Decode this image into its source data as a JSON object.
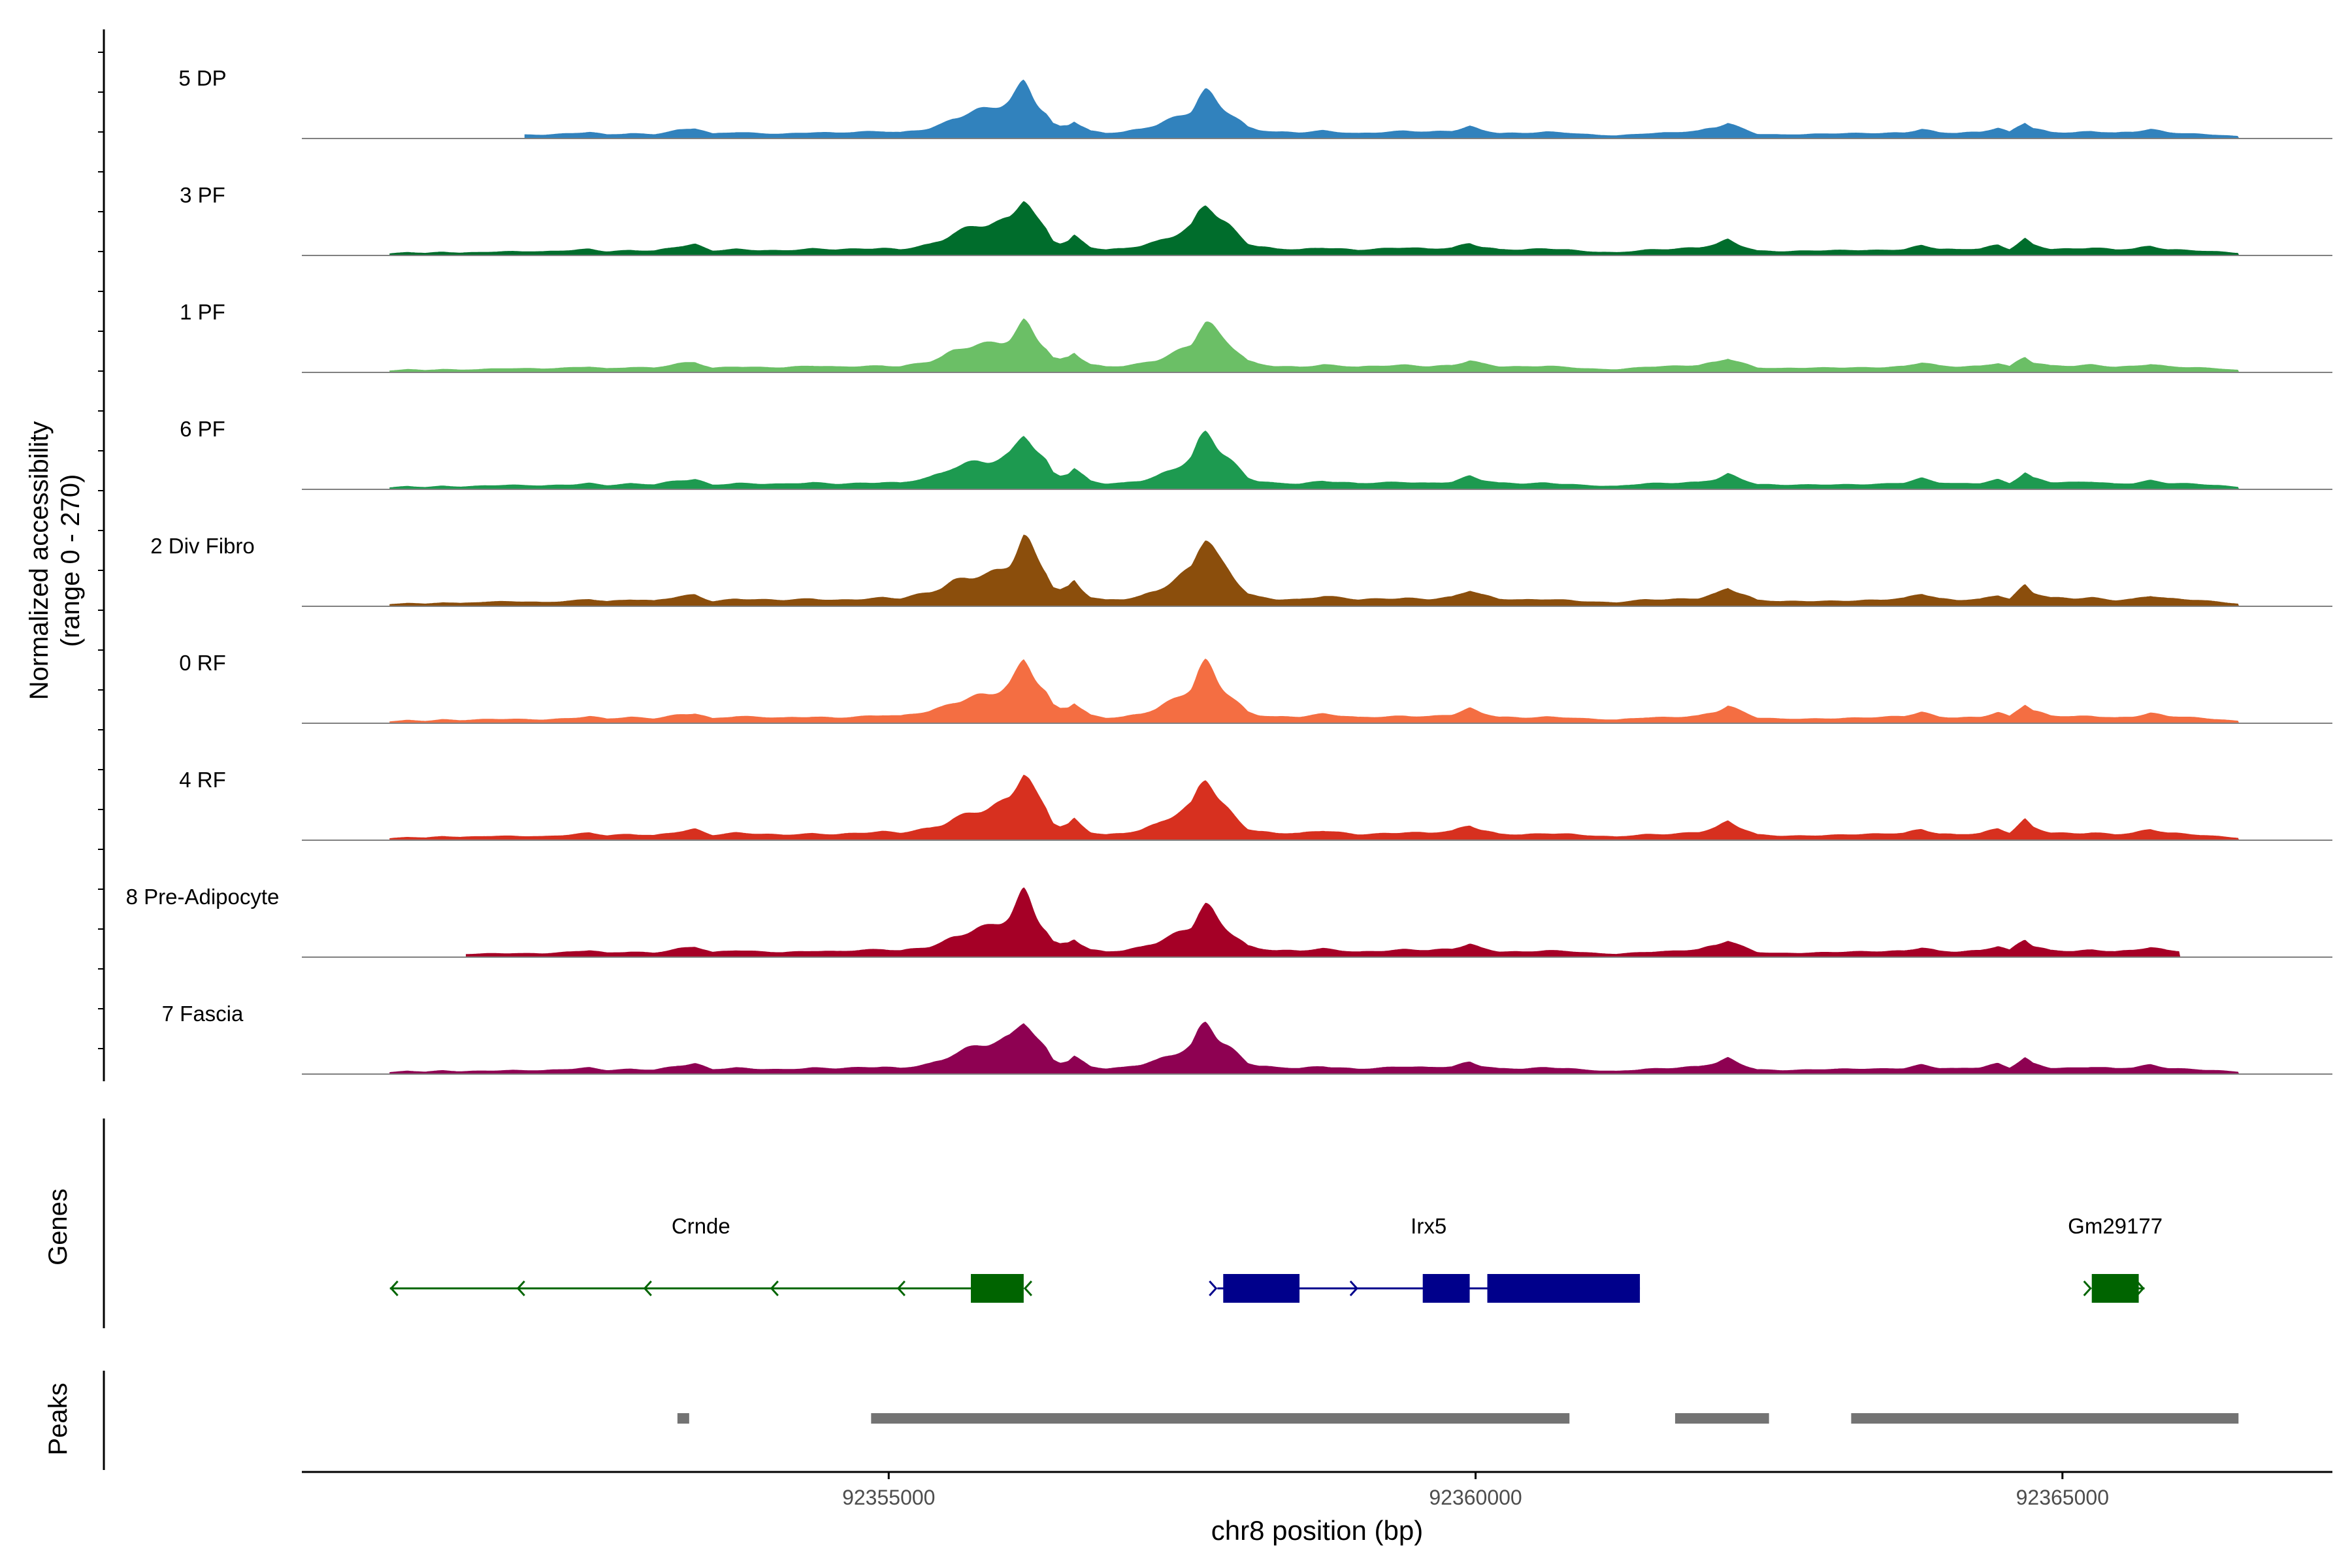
{
  "chart_data": {
    "type": "area",
    "title": "",
    "ylabel_line1": "Normalized accessibility",
    "ylabel_line2": "(range 0 - 270)",
    "xlabel": "chr8 position (bp)",
    "xlim": [
      92350000,
      92367300
    ],
    "ylim": [
      0,
      270
    ],
    "x_ticks": [
      92355000,
      92360000,
      92365000
    ],
    "x_tick_labels": [
      "92355000",
      "92360000",
      "92365000"
    ],
    "genes_label": "Genes",
    "peaks_label": "Peaks",
    "peak_template": [
      [
        92350750,
        0.02
      ],
      [
        92350900,
        0.05
      ],
      [
        92351050,
        0.03
      ],
      [
        92351200,
        0.06
      ],
      [
        92351350,
        0.04
      ],
      [
        92351550,
        0.06
      ],
      [
        92351800,
        0.07
      ],
      [
        92352050,
        0.06
      ],
      [
        92352300,
        0.09
      ],
      [
        92352450,
        0.12
      ],
      [
        92352600,
        0.07
      ],
      [
        92352800,
        0.1
      ],
      [
        92353000,
        0.08
      ],
      [
        92353200,
        0.16
      ],
      [
        92353350,
        0.2
      ],
      [
        92353500,
        0.08
      ],
      [
        92353700,
        0.12
      ],
      [
        92353900,
        0.1
      ],
      [
        92354100,
        0.09
      ],
      [
        92354350,
        0.12
      ],
      [
        92354550,
        0.1
      ],
      [
        92354750,
        0.12
      ],
      [
        92354950,
        0.14
      ],
      [
        92355100,
        0.12
      ],
      [
        92355250,
        0.18
      ],
      [
        92355350,
        0.22
      ],
      [
        92355450,
        0.3
      ],
      [
        92355550,
        0.42
      ],
      [
        92355650,
        0.5
      ],
      [
        92355750,
        0.56
      ],
      [
        92355850,
        0.6
      ],
      [
        92355950,
        0.66
      ],
      [
        92356030,
        0.74
      ],
      [
        92356100,
        0.88
      ],
      [
        92356150,
        1.0
      ],
      [
        92356200,
        0.92
      ],
      [
        92356270,
        0.74
      ],
      [
        92356340,
        0.56
      ],
      [
        92356400,
        0.32
      ],
      [
        92356460,
        0.26
      ],
      [
        92356530,
        0.3
      ],
      [
        92356580,
        0.4
      ],
      [
        92356640,
        0.28
      ],
      [
        92356720,
        0.15
      ],
      [
        92356850,
        0.1
      ],
      [
        92357000,
        0.12
      ],
      [
        92357150,
        0.18
      ],
      [
        92357280,
        0.27
      ],
      [
        92357400,
        0.4
      ],
      [
        92357500,
        0.52
      ],
      [
        92357580,
        0.62
      ],
      [
        92357640,
        0.82
      ],
      [
        92357700,
        0.93
      ],
      [
        92357760,
        0.86
      ],
      [
        92357830,
        0.72
      ],
      [
        92357900,
        0.58
      ],
      [
        92357980,
        0.4
      ],
      [
        92358060,
        0.22
      ],
      [
        92358150,
        0.16
      ],
      [
        92358300,
        0.12
      ],
      [
        92358500,
        0.11
      ],
      [
        92358700,
        0.16
      ],
      [
        92358850,
        0.13
      ],
      [
        92359000,
        0.1
      ],
      [
        92359200,
        0.12
      ],
      [
        92359400,
        0.14
      ],
      [
        92359600,
        0.12
      ],
      [
        92359800,
        0.15
      ],
      [
        92359950,
        0.26
      ],
      [
        92360050,
        0.18
      ],
      [
        92360200,
        0.11
      ],
      [
        92360400,
        0.1
      ],
      [
        92360600,
        0.12
      ],
      [
        92360800,
        0.1
      ],
      [
        92360900,
        0.08
      ],
      [
        92361050,
        0.06
      ],
      [
        92361200,
        0.05
      ],
      [
        92361450,
        0.1
      ],
      [
        92361650,
        0.11
      ],
      [
        92361900,
        0.14
      ],
      [
        92362050,
        0.22
      ],
      [
        92362150,
        0.32
      ],
      [
        92362250,
        0.22
      ],
      [
        92362400,
        0.09
      ],
      [
        92362600,
        0.07
      ],
      [
        92362900,
        0.08
      ],
      [
        92363150,
        0.09
      ],
      [
        92363450,
        0.1
      ],
      [
        92363650,
        0.12
      ],
      [
        92363800,
        0.2
      ],
      [
        92363950,
        0.12
      ],
      [
        92364100,
        0.1
      ],
      [
        92364300,
        0.12
      ],
      [
        92364450,
        0.2
      ],
      [
        92364550,
        0.12
      ],
      [
        92364680,
        0.35
      ],
      [
        92364750,
        0.22
      ],
      [
        92364900,
        0.13
      ],
      [
        92365100,
        0.12
      ],
      [
        92365250,
        0.14
      ],
      [
        92365450,
        0.1
      ],
      [
        92365600,
        0.12
      ],
      [
        92365750,
        0.18
      ],
      [
        92365900,
        0.12
      ],
      [
        92366150,
        0.09
      ],
      [
        92366350,
        0.06
      ],
      [
        92366500,
        0.03
      ]
    ],
    "series": [
      {
        "name": "5 DP",
        "color": "#3182BD",
        "x_start": 92351900,
        "x_end": 92366500,
        "scale": 0.42,
        "spikes": [
          [
            92356150,
            0.2
          ],
          [
            92357700,
            0.15
          ]
        ]
      },
      {
        "name": "3 PF",
        "color": "#006D2C",
        "x_start": 92350750,
        "x_end": 92366500,
        "scale": 0.44,
        "spikes": [
          [
            92356150,
            0.22
          ],
          [
            92357700,
            0.17
          ]
        ]
      },
      {
        "name": "1 PF",
        "color": "#6BBF66",
        "x_start": 92350750,
        "x_end": 92366500,
        "scale": 0.42,
        "spikes": [
          [
            92356150,
            0.15
          ],
          [
            92357700,
            0.14
          ]
        ]
      },
      {
        "name": "6 PF",
        "color": "#1D9A50",
        "x_start": 92350750,
        "x_end": 92366500,
        "scale": 0.44,
        "spikes": [
          [
            92356150,
            0.2
          ],
          [
            92357700,
            0.18
          ]
        ]
      },
      {
        "name": "2 Div Fibro",
        "color": "#8B4E0C",
        "x_start": 92350750,
        "x_end": 92366500,
        "scale": 0.52,
        "spikes": [
          [
            92356150,
            0.22
          ],
          [
            92357700,
            0.2
          ]
        ]
      },
      {
        "name": "0 RF",
        "color": "#F46E42",
        "x_start": 92350750,
        "x_end": 92366500,
        "scale": 0.46,
        "spikes": [
          [
            92356150,
            0.18
          ],
          [
            92357700,
            0.22
          ]
        ]
      },
      {
        "name": "4 RF",
        "color": "#D7301F",
        "x_start": 92350750,
        "x_end": 92366500,
        "scale": 0.48,
        "spikes": [
          [
            92356150,
            0.2
          ],
          [
            92357700,
            0.26
          ]
        ]
      },
      {
        "name": "8 Pre-Adipocyte",
        "color": "#A50026",
        "x_start": 92351400,
        "x_end": 92366000,
        "scale": 0.44,
        "spikes": [
          [
            92356150,
            0.3
          ],
          [
            92357700,
            0.2
          ]
        ]
      },
      {
        "name": "7 Fascia",
        "color": "#8E0152",
        "x_start": 92350750,
        "x_end": 92366500,
        "scale": 0.42,
        "spikes": [
          [
            92356150,
            0.15
          ],
          [
            92357700,
            0.25
          ]
        ]
      }
    ],
    "genes": [
      {
        "name": "Crnde",
        "strand": "-",
        "color": "#006400",
        "start": 92350750,
        "end": 92356150,
        "exons": [
          [
            92355700,
            92356150
          ]
        ],
        "label_x": 92353400
      },
      {
        "name": "Irx5",
        "strand": "+",
        "color": "#00008B",
        "start": 92357800,
        "end": 92361400,
        "exons": [
          [
            92357850,
            92358500
          ],
          [
            92359550,
            92359950
          ],
          [
            92360100,
            92361400
          ]
        ],
        "label_x": 92359600
      },
      {
        "name": "Gm29177",
        "strand": "+",
        "color": "#006400",
        "start": 92365250,
        "end": 92365700,
        "exons": [
          [
            92365250,
            92365650
          ]
        ],
        "label_x": 92365450
      }
    ],
    "peaks": [
      [
        92353200,
        92353300
      ],
      [
        92354850,
        92360800
      ],
      [
        92361700,
        92362500
      ],
      [
        92363200,
        92366500
      ]
    ]
  }
}
